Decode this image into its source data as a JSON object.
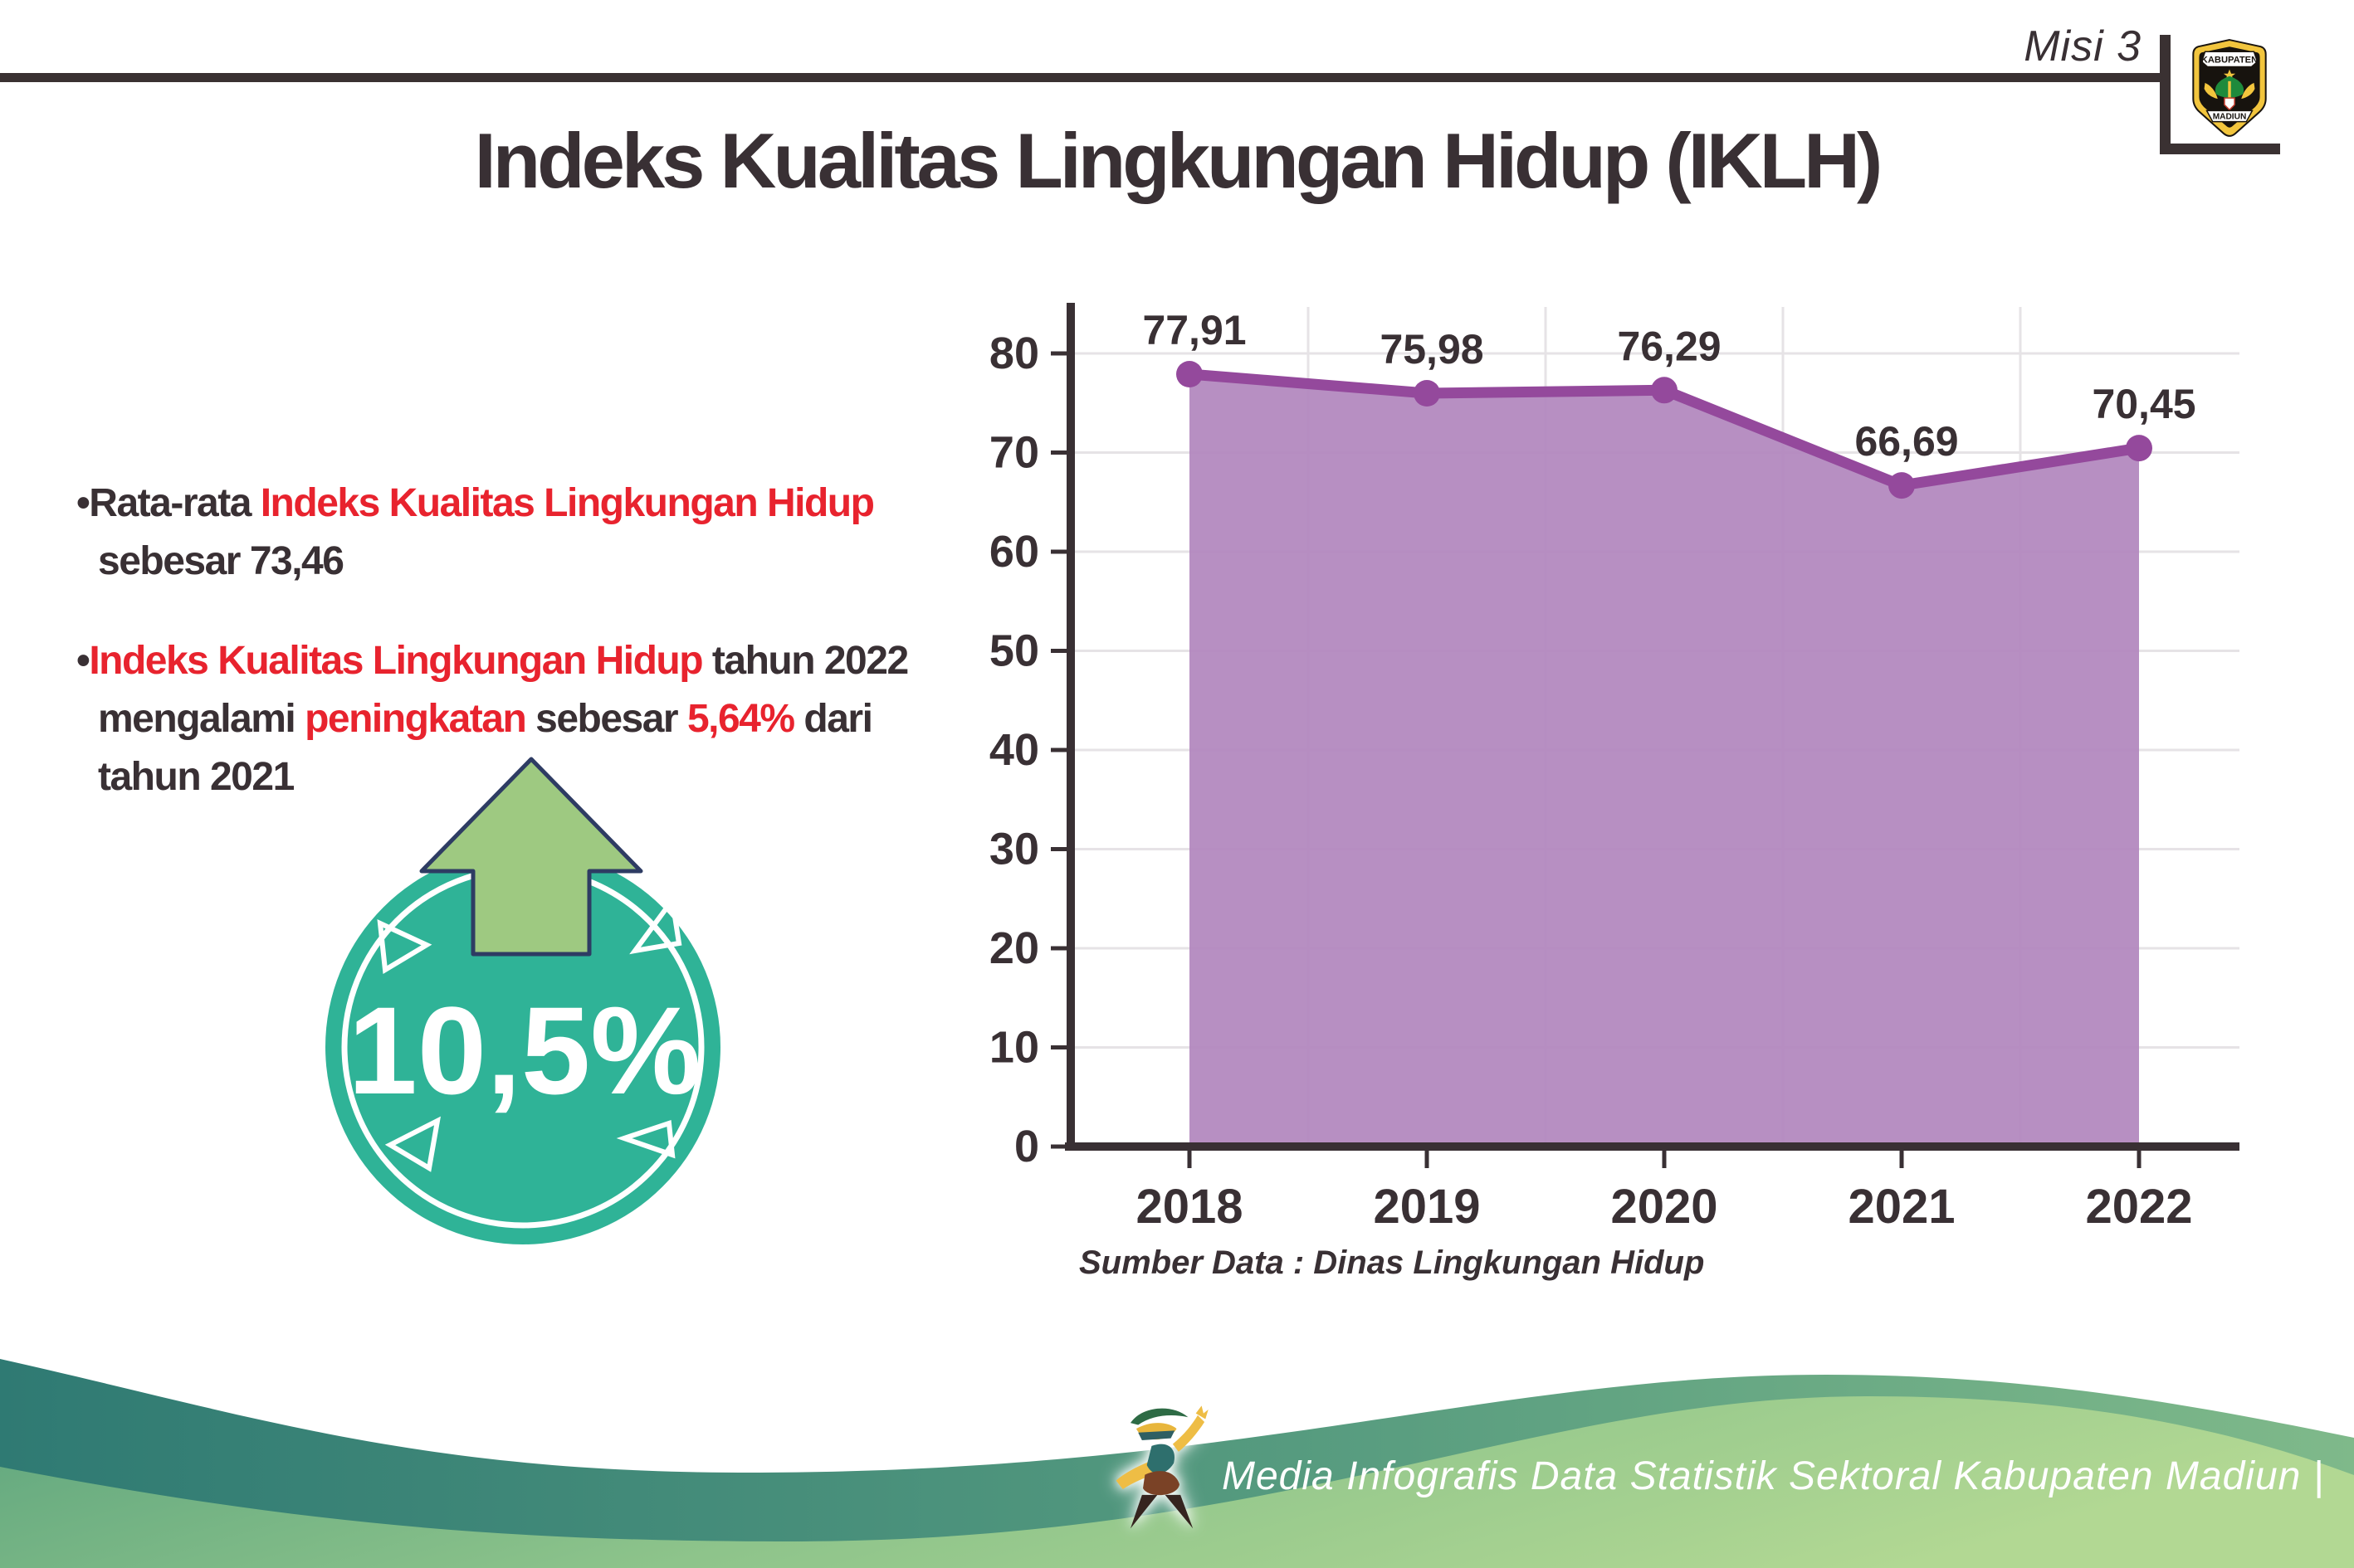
{
  "header": {
    "misi_label": "Misi 3",
    "title": "Indeks Kualitas Lingkungan Hidup (IKLH)",
    "logo": {
      "top_banner": "KABUPATEN",
      "bottom_banner": "MADIUN"
    }
  },
  "bullets": {
    "b1": {
      "lines": [
        [
          {
            "t": "•Rata-rata ",
            "c": "dark"
          },
          {
            "t": "Indeks Kualitas Lingkungan Hidup",
            "c": "red"
          }
        ],
        [
          {
            "t": "sebesar 73,46",
            "c": "dark"
          }
        ]
      ]
    },
    "b2": {
      "lines": [
        [
          {
            "t": "•",
            "c": "dark"
          },
          {
            "t": "Indeks Kualitas Lingkungan Hidup",
            "c": "red"
          },
          {
            "t": " tahun 2022",
            "c": "dark"
          }
        ],
        [
          {
            "t": "mengalami ",
            "c": "dark"
          },
          {
            "t": "peningkatan",
            "c": "red"
          },
          {
            "t": " sebesar ",
            "c": "dark"
          },
          {
            "t": "5,64%",
            "c": "red"
          },
          {
            "t": " dari",
            "c": "dark"
          }
        ],
        [
          {
            "t": "tahun 2021",
            "c": "dark"
          }
        ]
      ]
    }
  },
  "badge": {
    "value": "10,5%",
    "circle_color": "#2fb397",
    "arrow_color": "#9ec981"
  },
  "chart_data": {
    "type": "area",
    "title": "",
    "categories": [
      "2018",
      "2019",
      "2020",
      "2021",
      "2022"
    ],
    "values": [
      77.91,
      75.98,
      76.29,
      66.69,
      70.45
    ],
    "value_labels": [
      "77,91",
      "75,98",
      "76,29",
      "66,69",
      "70,45"
    ],
    "y_ticks": [
      0,
      10,
      20,
      30,
      40,
      50,
      60,
      70,
      80
    ],
    "ylim": [
      0,
      84
    ],
    "grid": "on",
    "legend": "none",
    "colors": {
      "line": "#94499c",
      "fill": "#b286bd",
      "grid": "#e6e3e6",
      "axis": "#393034"
    }
  },
  "source_note": "Sumber Data : Dinas Lingkungan Hidup",
  "footer": {
    "caption": "Media Infografis Data Statistik Sektoral Kabupaten Madiun |"
  },
  "colors": {
    "ink": "#393034",
    "accent_red": "#e8232e",
    "badge_teal": "#2fb397",
    "arrow_green": "#9ec981",
    "footer_teal": "#2f7a73",
    "footer_green": "#a9d28e"
  }
}
